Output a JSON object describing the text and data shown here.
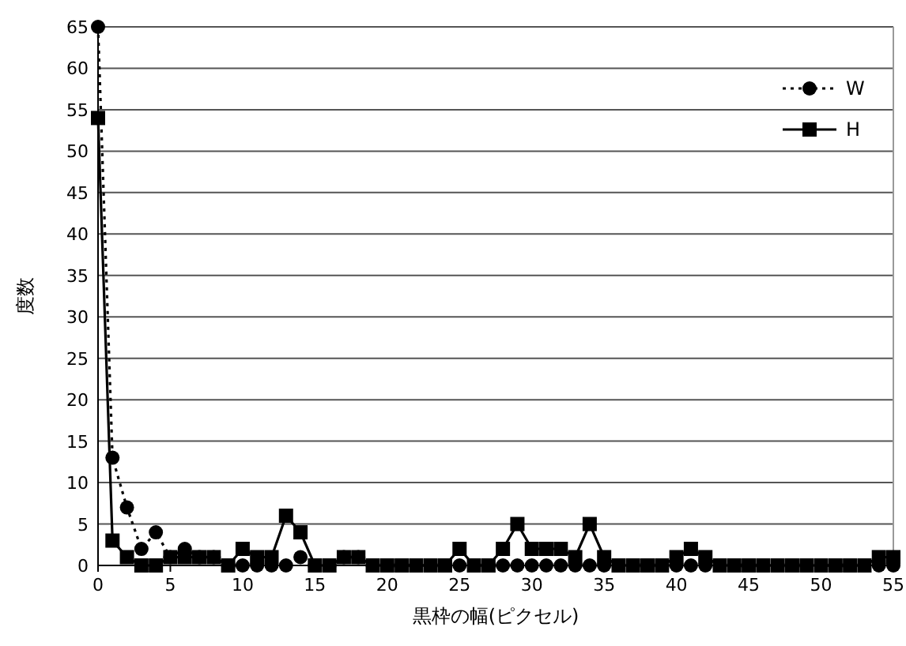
{
  "chart_data": {
    "type": "line",
    "xlabel": "黒枠の幅(ピクセル)",
    "ylabel": "度数",
    "x": [
      0,
      1,
      2,
      3,
      4,
      5,
      6,
      7,
      8,
      9,
      10,
      11,
      12,
      13,
      14,
      15,
      16,
      17,
      18,
      19,
      20,
      21,
      22,
      23,
      24,
      25,
      26,
      27,
      28,
      29,
      30,
      31,
      32,
      33,
      34,
      35,
      36,
      37,
      38,
      39,
      40,
      41,
      42,
      43,
      44,
      45,
      46,
      47,
      48,
      49,
      50,
      51,
      52,
      53,
      54,
      55
    ],
    "series": [
      {
        "name": "W",
        "color": "#000000",
        "marker": "circle",
        "line_style": "dotted",
        "values": [
          65,
          13,
          7,
          2,
          4,
          1,
          2,
          1,
          1,
          0,
          0,
          0,
          0,
          0,
          1,
          0,
          0,
          1,
          1,
          0,
          0,
          0,
          0,
          0,
          0,
          0,
          0,
          0,
          0,
          0,
          0,
          0,
          0,
          0,
          0,
          0,
          0,
          0,
          0,
          0,
          0,
          0,
          0,
          0,
          0,
          0,
          0,
          0,
          0,
          0,
          0,
          0,
          0,
          0,
          0,
          0
        ]
      },
      {
        "name": "H",
        "color": "#000000",
        "marker": "square",
        "line_style": "solid",
        "values": [
          54,
          3,
          1,
          0,
          0,
          1,
          1,
          1,
          1,
          0,
          2,
          1,
          1,
          6,
          4,
          0,
          0,
          1,
          1,
          0,
          0,
          0,
          0,
          0,
          0,
          2,
          0,
          0,
          2,
          5,
          2,
          2,
          2,
          1,
          5,
          1,
          0,
          0,
          0,
          0,
          1,
          2,
          1,
          0,
          0,
          0,
          0,
          0,
          0,
          0,
          0,
          0,
          0,
          0,
          1,
          1
        ]
      }
    ],
    "xlim": [
      0,
      55
    ],
    "xticks": [
      0,
      5,
      10,
      15,
      20,
      25,
      30,
      35,
      40,
      45,
      50,
      55
    ],
    "ylim": [
      0,
      65
    ],
    "yticks": [
      0,
      5,
      10,
      15,
      20,
      25,
      30,
      35,
      40,
      45,
      50,
      55,
      60,
      65
    ],
    "grid": "y",
    "legend": "top right"
  }
}
